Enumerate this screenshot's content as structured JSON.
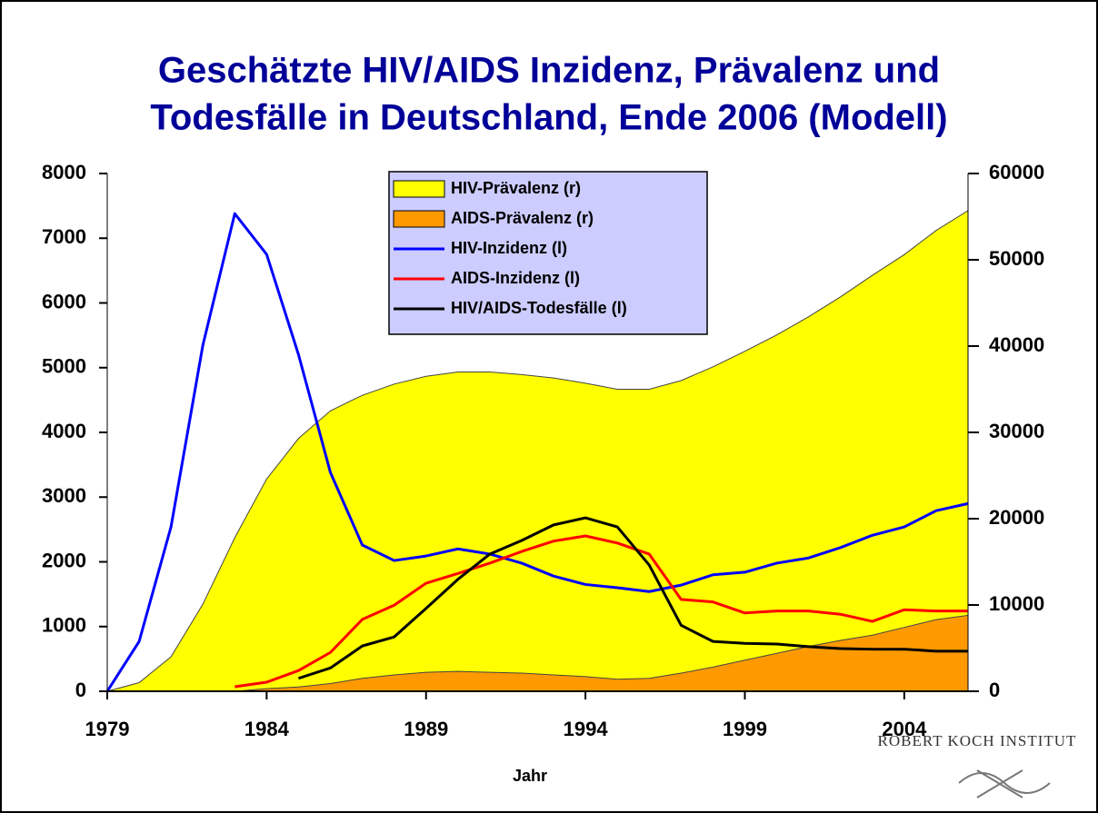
{
  "chart_data": {
    "type": "area-line",
    "title": [
      "Geschätzte HIV/AIDS Inzidenz, Prävalenz und",
      "Todesfälle in Deutschland, Ende 2006  (Modell)"
    ],
    "xlabel": "Jahr",
    "x": [
      1979,
      1980,
      1981,
      1982,
      1983,
      1984,
      1985,
      1986,
      1987,
      1988,
      1989,
      1990,
      1991,
      1992,
      1993,
      1994,
      1995,
      1996,
      1997,
      1998,
      1999,
      2000,
      2001,
      2002,
      2003,
      2004,
      2005,
      2006
    ],
    "xlim": [
      1979,
      2006
    ],
    "xticks": [
      1979,
      1984,
      1989,
      1994,
      1999,
      2004
    ],
    "ylim": [
      0,
      8000
    ],
    "yticks": [
      0,
      1000,
      2000,
      3000,
      4000,
      5000,
      6000,
      7000,
      8000
    ],
    "y2lim": [
      0,
      60000
    ],
    "y2ticks": [
      0,
      10000,
      20000,
      30000,
      40000,
      50000,
      60000
    ],
    "legend": "top-center",
    "series": [
      {
        "name": "HIV-Prävalenz (r)",
        "kind": "area",
        "axis": "y2",
        "color": "#ffff00",
        "values": [
          0,
          1000,
          4000,
          10100,
          17800,
          24600,
          29300,
          32500,
          34300,
          35600,
          36500,
          37000,
          37000,
          36700,
          36300,
          35700,
          35000,
          35000,
          36000,
          37600,
          39400,
          41300,
          43400,
          45700,
          48200,
          50600,
          53400,
          55700
        ]
      },
      {
        "name": "AIDS-Prävalenz (r)",
        "kind": "area",
        "axis": "y2",
        "color": "#ff9900",
        "values": [
          0,
          0,
          0,
          0,
          0,
          300,
          500,
          900,
          1500,
          1900,
          2200,
          2300,
          2200,
          2100,
          1900,
          1700,
          1400,
          1500,
          2100,
          2800,
          3600,
          4400,
          5200,
          5900,
          6500,
          7400,
          8300,
          8800
        ]
      },
      {
        "name": "HIV-Inzidenz (l)",
        "kind": "line",
        "color": "#0000ff",
        "values": [
          0,
          770,
          2540,
          5350,
          7380,
          6750,
          5200,
          3380,
          2260,
          2020,
          2090,
          2200,
          2120,
          1980,
          1780,
          1650,
          1600,
          1540,
          1640,
          1800,
          1840,
          1980,
          2060,
          2220,
          2410,
          2540,
          2790,
          2900
        ]
      },
      {
        "name": "AIDS-Inzidenz (l)",
        "kind": "line",
        "color": "#ff0000",
        "values": [
          null,
          null,
          null,
          null,
          70,
          140,
          320,
          600,
          1110,
          1330,
          1670,
          1820,
          1980,
          2160,
          2320,
          2400,
          2290,
          2120,
          1420,
          1380,
          1210,
          1240,
          1240,
          1190,
          1080,
          1260,
          1240,
          1240
        ]
      },
      {
        "name": "HIV/AIDS-Todesfälle (l)",
        "kind": "line",
        "color": "#000000",
        "values": [
          null,
          null,
          null,
          null,
          null,
          null,
          200,
          360,
          700,
          840,
          1280,
          1730,
          2120,
          2330,
          2570,
          2680,
          2540,
          1950,
          1020,
          770,
          740,
          730,
          690,
          660,
          650,
          650,
          620,
          620
        ]
      }
    ]
  },
  "logo": "ROBERT KOCH INSTITUT"
}
